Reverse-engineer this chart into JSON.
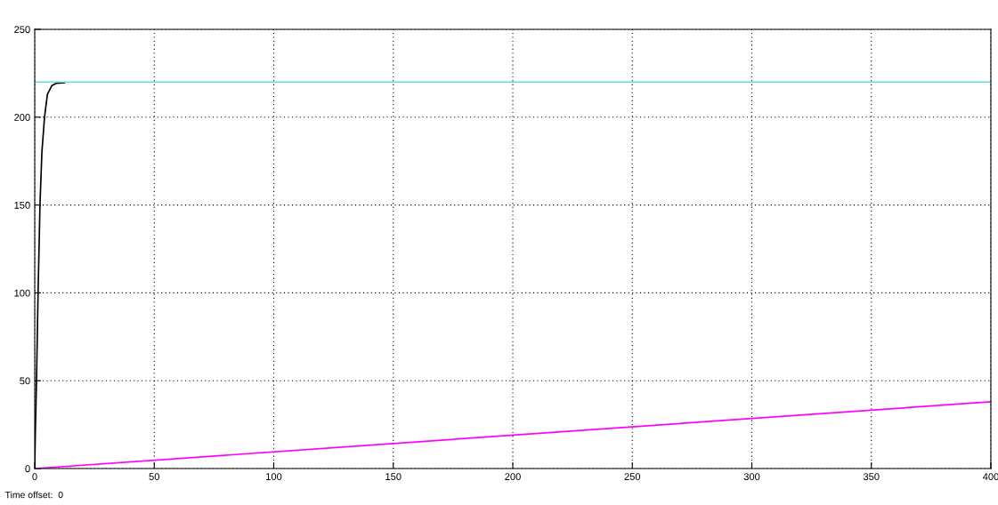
{
  "chart_data": {
    "type": "line",
    "series": [
      {
        "color": "#000000",
        "x": [
          0,
          0.25,
          0.75,
          1.4,
          2.2,
          3.0,
          4.1,
          5.3,
          7.2,
          9.0,
          11.5,
          12.5
        ],
        "values": [
          0,
          20,
          50,
          100,
          150,
          180,
          200,
          213,
          218,
          219.3,
          219.6,
          219.7
        ]
      },
      {
        "color": "#66dddd",
        "x": [
          0,
          400
        ],
        "values": [
          220,
          220
        ]
      },
      {
        "color": "#ff00ff",
        "x": [
          0,
          400
        ],
        "values": [
          0,
          38
        ]
      }
    ],
    "xlim": [
      0,
      400
    ],
    "xticks": [
      0,
      50,
      100,
      150,
      200,
      250,
      300,
      350,
      400
    ],
    "ylim": [
      0,
      250
    ],
    "yticks": [
      0,
      50,
      100,
      150,
      200,
      250
    ],
    "grid": true,
    "line_style": "solid",
    "annotations": [
      "Time offset:  0"
    ]
  }
}
